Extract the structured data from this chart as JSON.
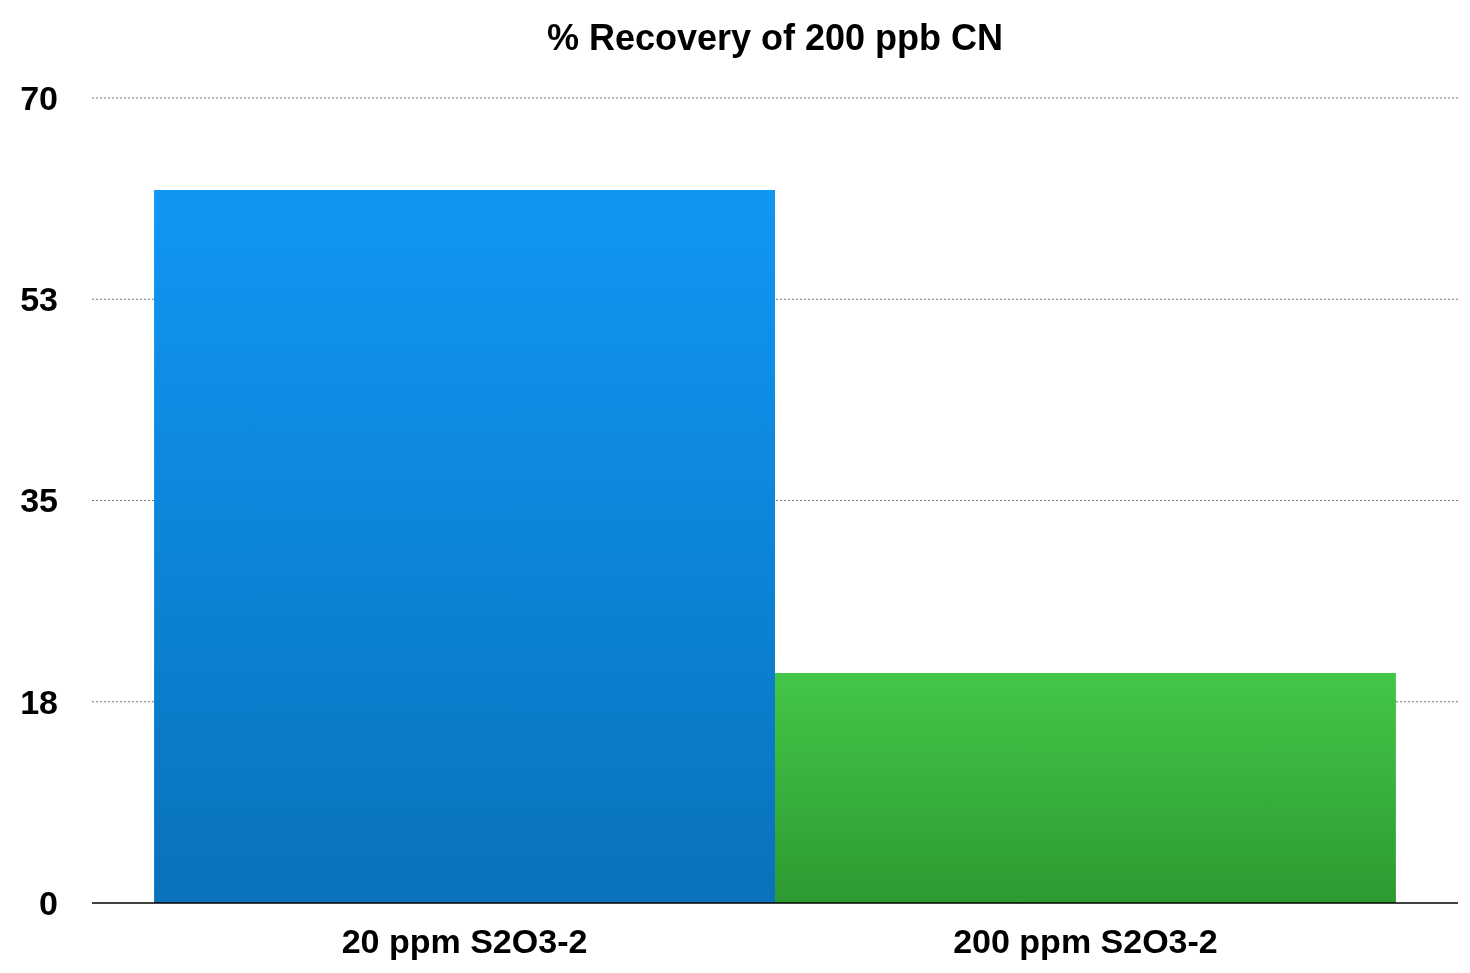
{
  "chart_data": {
    "type": "bar",
    "title": "% Recovery of 200 ppb CN",
    "categories": [
      "20 ppm S2O3-2",
      "200 ppm S2O3-2"
    ],
    "values": [
      62,
      20
    ],
    "colors": [
      "#0a86dc",
      "#36b53a"
    ],
    "ylim": [
      0,
      70
    ],
    "yticks": [
      0,
      {
        "value": 17.5,
        "label": "18"
      },
      35,
      {
        "value": 52.5,
        "label": "53"
      },
      70
    ],
    "grid": "y"
  }
}
